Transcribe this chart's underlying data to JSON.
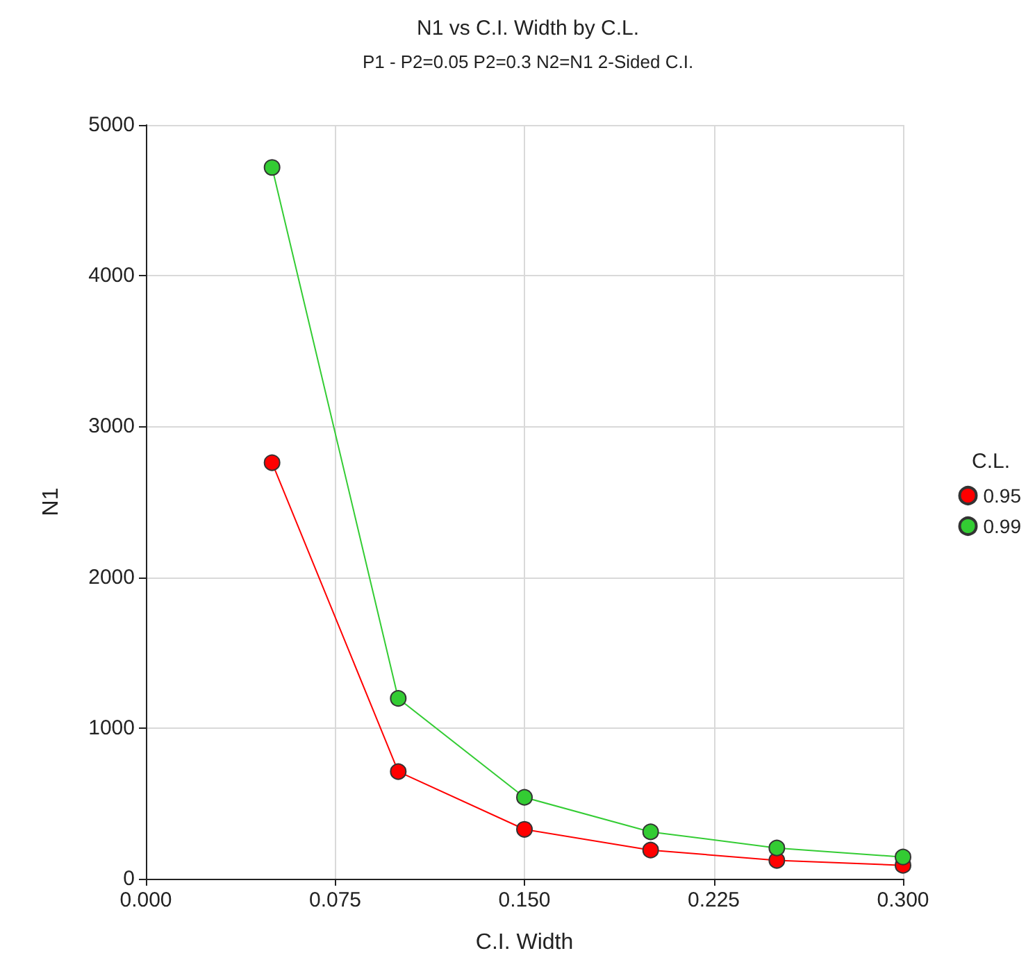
{
  "chart_data": {
    "type": "line",
    "title": "N1 vs C.I. Width by C.L.",
    "subtitle": "P1 - P2=0.05 P2=0.3 N2=N1 2-Sided C.I.",
    "xlabel": "C.I. Width",
    "ylabel": "N1",
    "legend_title": "C.L.",
    "x": [
      0.05,
      0.1,
      0.15,
      0.2,
      0.25,
      0.3
    ],
    "series": [
      {
        "name": "0.95",
        "color": "#ff0000",
        "values": [
          2760,
          711,
          328,
          190,
          122,
          89
        ]
      },
      {
        "name": "0.99",
        "color": "#33cc33",
        "values": [
          4718,
          1196,
          540,
          311,
          204,
          144
        ]
      }
    ],
    "xlim": [
      0,
      0.3
    ],
    "xticks": [
      {
        "value": 0,
        "label": "0.000"
      },
      {
        "value": 0.075,
        "label": "0.075"
      },
      {
        "value": 0.15,
        "label": "0.150"
      },
      {
        "value": 0.225,
        "label": "0.225"
      },
      {
        "value": 0.3,
        "label": "0.300"
      }
    ],
    "ylim": [
      0,
      5000
    ],
    "yticks": [
      0,
      1000,
      2000,
      3000,
      4000,
      5000
    ],
    "grid": true,
    "legend": "right",
    "marker": "circle",
    "line_style": "solid"
  }
}
